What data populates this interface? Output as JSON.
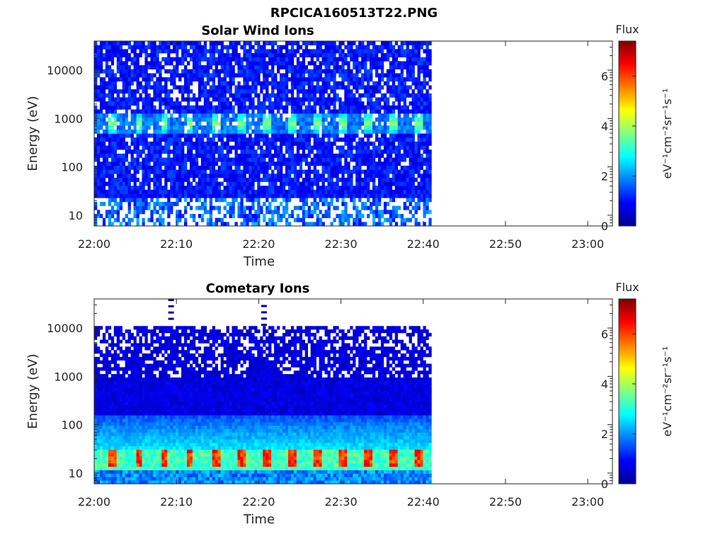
{
  "figure": {
    "title": "RPCICA160513T22.PNG"
  },
  "colormap": "jet",
  "chart_data": [
    {
      "type": "heatmap",
      "title": "Solar Wind Ions",
      "xlabel": "Time",
      "ylabel": "Energy (eV)",
      "y_scale": "log",
      "xlim": [
        "22:00",
        "23:03"
      ],
      "ylim": [
        6,
        40000
      ],
      "x_ticks": [
        "22:00",
        "22:10",
        "22:20",
        "22:30",
        "22:40",
        "22:50",
        "23:00"
      ],
      "y_ticks": [
        "10",
        "100",
        "1000",
        "10000"
      ],
      "data_time_range": [
        "22:00",
        "22:41"
      ],
      "colorbar": {
        "title": "Flux",
        "label": "eV⁻¹cm⁻²sr⁻¹s⁻¹",
        "range": [
          0,
          7.4
        ],
        "ticks": [
          "0",
          "2",
          "4",
          "6"
        ]
      },
      "features": [
        {
          "description": "periodic high-flux bursts near 800 eV, roughly every 3 minutes",
          "energy_eV": 800,
          "peak_flux": 3.5
        }
      ]
    },
    {
      "type": "heatmap",
      "title": "Cometary Ions",
      "xlabel": "Time",
      "ylabel": "Energy (eV)",
      "y_scale": "log",
      "xlim": [
        "22:00",
        "23:03"
      ],
      "ylim": [
        6,
        40000
      ],
      "x_ticks": [
        "22:00",
        "22:10",
        "22:20",
        "22:30",
        "22:40",
        "22:50",
        "23:00"
      ],
      "y_ticks": [
        "10",
        "100",
        "1000",
        "10000"
      ],
      "data_time_range": [
        "22:00",
        "22:41"
      ],
      "colorbar": {
        "title": "Flux",
        "label": "eV⁻¹cm⁻²sr⁻¹s⁻¹",
        "range": [
          0,
          7.4
        ],
        "ticks": [
          "0",
          "2",
          "4",
          "6"
        ]
      },
      "features": [
        {
          "description": "periodic high-flux bursts near 20 eV, roughly every 3 minutes",
          "energy_eV": 20,
          "peak_flux": 5.5
        }
      ]
    }
  ]
}
